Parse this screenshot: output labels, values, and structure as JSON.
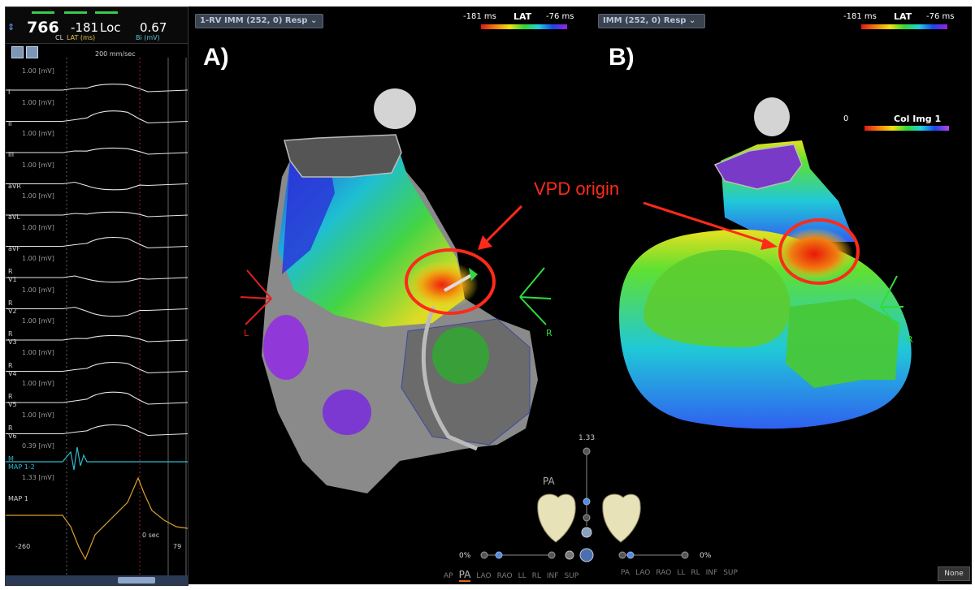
{
  "ecg_panel": {
    "cycle_length": "766",
    "lat_value": "-181",
    "loc_label": "Loc",
    "bipolar_value": "0.67",
    "cl_label": "CL",
    "lat_label": "LAT (ms)",
    "bi_label": "Bi (mV)",
    "sweep_speed": "200 mm/sec",
    "leads": [
      {
        "scale": "1.00  [mV]",
        "name": "I"
      },
      {
        "scale": "1.00  [mV]",
        "name": "II"
      },
      {
        "scale": "1.00  [mV]",
        "name": "III"
      },
      {
        "scale": "1.00  [mV]",
        "name": "aVR"
      },
      {
        "scale": "1.00  [mV]",
        "name": "aVL"
      },
      {
        "scale": "1.00  [mV]",
        "name": "aVF"
      },
      {
        "scale": "1.00  [mV]",
        "name": "R\nV1"
      },
      {
        "scale": "1.00  [mV]",
        "name": "R\nV2"
      },
      {
        "scale": "1.00  [mV]",
        "name": "R\nV3"
      },
      {
        "scale": "1.00  [mV]",
        "name": "R\nV4"
      },
      {
        "scale": "1.00  [mV]",
        "name": "R\nV5"
      },
      {
        "scale": "1.00  [mV]",
        "name": "R\nV6"
      },
      {
        "scale": "0.39  [mV]",
        "name": "M\nMAP 1-2"
      },
      {
        "scale": "1.33  [mV]",
        "name": "MAP 1"
      }
    ],
    "zero_sec": "0 sec",
    "range_left": "-260",
    "range_right": "79"
  },
  "map_view": {
    "dropdown_a": "1-RV IMM (252, 0) Resp",
    "dropdown_b": "IMM (252, 0) Resp",
    "lat_bar_a": {
      "min": "-181 ms",
      "title": "LAT",
      "max": "-76 ms"
    },
    "lat_bar_b": {
      "min": "-181 ms",
      "title": "LAT",
      "max": "-76 ms"
    },
    "col_img": {
      "min": "0",
      "title": "Col Img 1"
    },
    "label_a": "A)",
    "label_b": "B)",
    "annotation": "VPD origin",
    "axis_left": "L",
    "axis_right_a": "R",
    "axis_right_b": "R"
  },
  "controls": {
    "zoom_value": "1.33",
    "view_label": "PA",
    "pct_left": "0%",
    "pct_right": "0%",
    "views_left": [
      "AP",
      "PA",
      "LAO",
      "RAO",
      "LL",
      "RL",
      "INF",
      "SUP"
    ],
    "views_right": [
      "PA",
      "LAO",
      "RAO",
      "LL",
      "RL",
      "INF",
      "SUP"
    ],
    "selected_view": "PA",
    "none_button": "None"
  },
  "colors": {
    "annotation_red": "#ff2a1a",
    "axis_green": "#2fdc3a",
    "axis_red": "#e02020",
    "ecg_trace": "#e8e8e8",
    "map12_trace": "#2fb8c8",
    "map1_trace": "#d8a030"
  }
}
